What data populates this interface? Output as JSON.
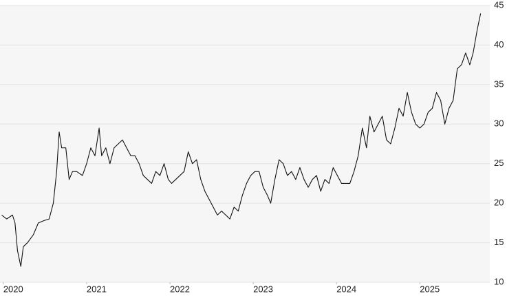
{
  "chart_data": {
    "type": "line",
    "x": [
      2019.98,
      2020.04,
      2020.11,
      2020.14,
      2020.17,
      2020.21,
      2020.24,
      2020.29,
      2020.36,
      2020.42,
      2020.49,
      2020.55,
      2020.6,
      2020.64,
      2020.67,
      2020.7,
      2020.75,
      2020.79,
      2020.83,
      2020.88,
      2020.95,
      2021.0,
      2021.05,
      2021.1,
      2021.15,
      2021.18,
      2021.23,
      2021.28,
      2021.33,
      2021.38,
      2021.43,
      2021.48,
      2021.53,
      2021.58,
      2021.63,
      2021.68,
      2021.73,
      2021.78,
      2021.83,
      2021.88,
      2021.93,
      2021.98,
      2022.02,
      2022.07,
      2022.12,
      2022.17,
      2022.22,
      2022.27,
      2022.32,
      2022.37,
      2022.42,
      2022.47,
      2022.52,
      2022.57,
      2022.62,
      2022.67,
      2022.72,
      2022.77,
      2022.82,
      2022.87,
      2022.92,
      2022.97,
      2023.02,
      2023.07,
      2023.12,
      2023.17,
      2023.21,
      2023.26,
      2023.31,
      2023.36,
      2023.41,
      2023.46,
      2023.51,
      2023.56,
      2023.61,
      2023.66,
      2023.71,
      2023.76,
      2023.81,
      2023.86,
      2023.91,
      2023.96,
      2024.01,
      2024.06,
      2024.11,
      2024.16,
      2024.21,
      2024.26,
      2024.31,
      2024.36,
      2024.4,
      2024.45,
      2024.5,
      2024.55,
      2024.6,
      2024.65,
      2024.7,
      2024.75,
      2024.8,
      2024.85,
      2024.9,
      2024.95,
      2025.0,
      2025.05,
      2025.1,
      2025.15,
      2025.2,
      2025.25,
      2025.3,
      2025.35,
      2025.4,
      2025.45,
      2025.5,
      2025.55,
      2025.6,
      2025.64,
      2025.69,
      2025.73
    ],
    "series": [
      {
        "color": "#111111",
        "values": [
          18.5,
          18,
          18.5,
          17.5,
          14,
          12,
          14.5,
          15,
          16,
          17.5,
          17.8,
          18,
          20,
          24,
          29,
          27,
          27,
          23,
          24,
          24,
          23.5,
          25,
          27,
          26,
          29.5,
          26,
          27,
          25,
          27,
          27.5,
          28,
          27,
          26,
          26,
          25,
          23.5,
          23,
          22.5,
          24,
          23.5,
          25,
          23,
          22.5,
          23,
          23.5,
          24,
          26.5,
          25,
          25.5,
          23,
          21.5,
          20.5,
          19.5,
          18.5,
          19,
          18.5,
          18,
          19.5,
          19,
          21,
          22.5,
          23.5,
          24,
          24,
          22,
          21,
          20,
          23,
          25.5,
          25,
          23.5,
          24,
          23,
          24.5,
          23,
          22,
          23,
          23.5,
          21.5,
          23,
          22.5,
          24.5,
          23.5,
          22.5,
          22.5,
          22.5,
          24,
          26,
          29.5,
          27,
          31,
          29,
          30,
          31,
          28,
          27.5,
          29.5,
          32,
          31,
          34,
          31.5,
          30,
          29.5,
          30,
          31.5,
          32,
          34,
          33,
          30,
          32,
          33,
          37,
          37.5,
          39,
          37.5,
          39,
          42,
          44
        ]
      }
    ],
    "xlim": [
      2019.96,
      2025.84
    ],
    "xticks": [
      2020,
      2021,
      2022,
      2023,
      2024,
      2025
    ],
    "ylim": [
      10,
      45
    ],
    "yticks": [
      10,
      15,
      20,
      25,
      30,
      35,
      40,
      45
    ],
    "grid": true
  }
}
